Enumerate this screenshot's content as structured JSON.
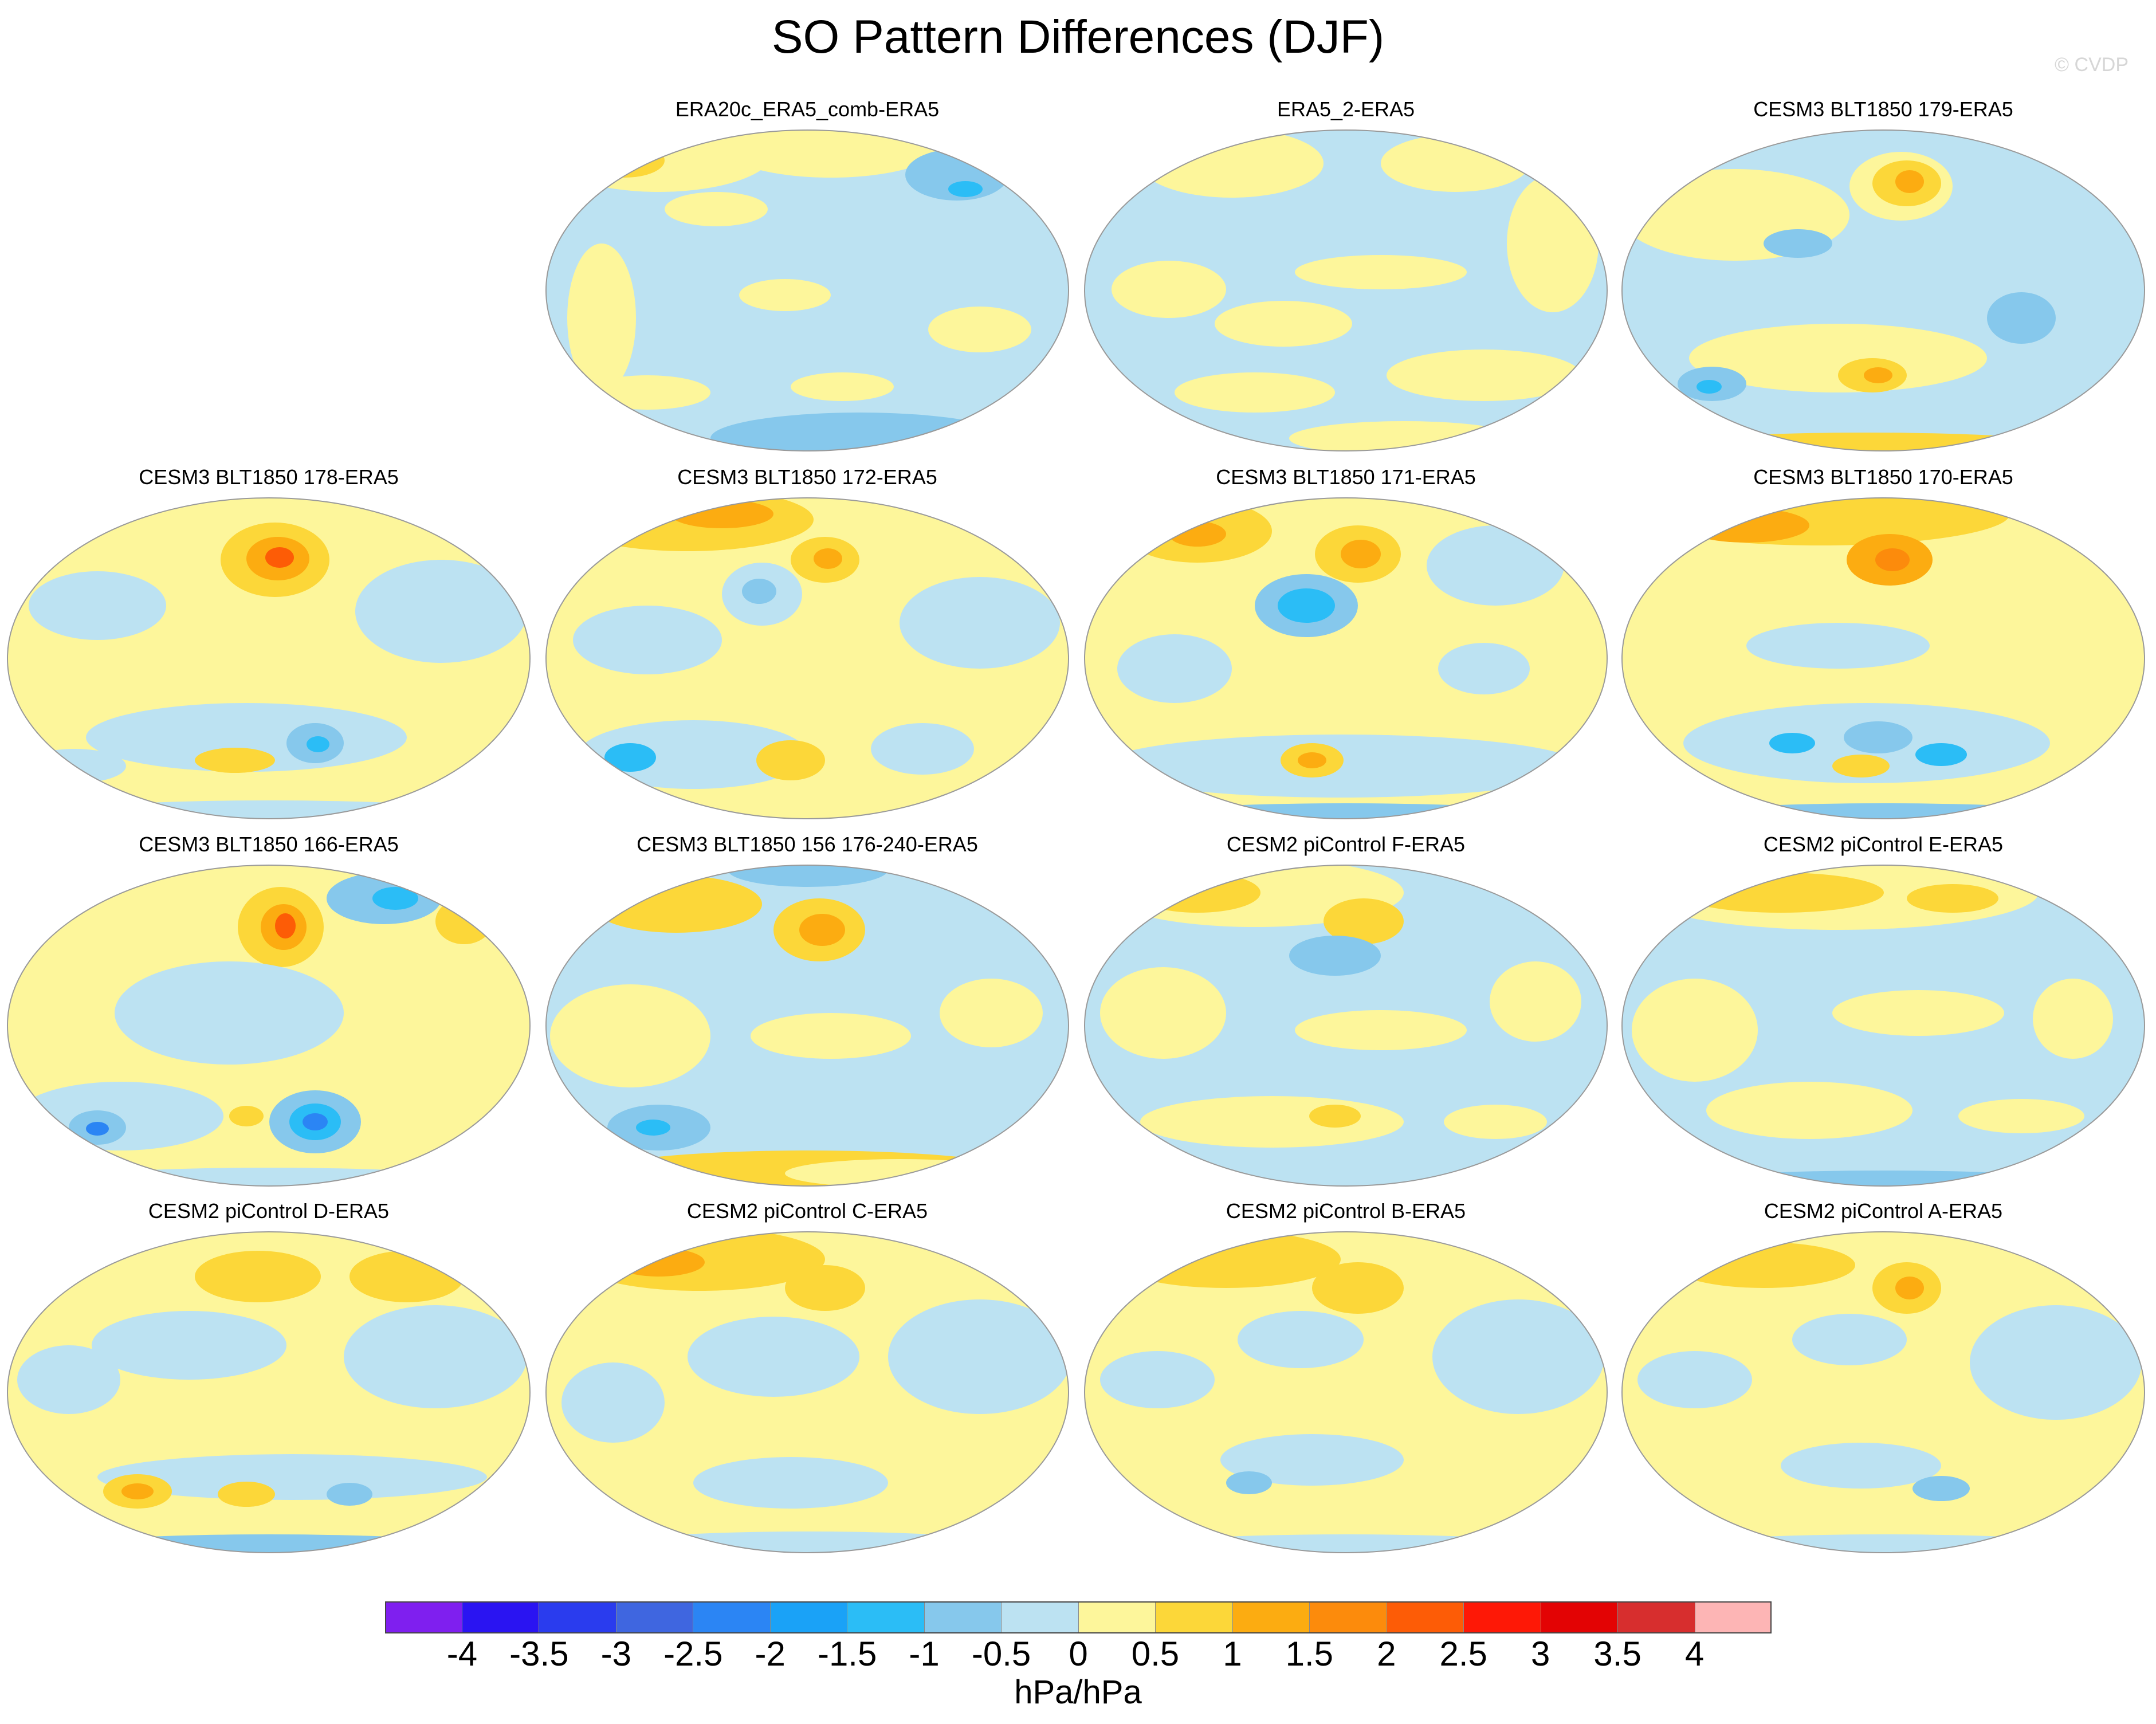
{
  "title": "SO Pattern Differences (DJF)",
  "credit": "© CVDP",
  "colorbar": {
    "units": "hPa/hPa",
    "colors": [
      "#7f1fef",
      "#2a14f2",
      "#2a3cee",
      "#3f66e0",
      "#2b85f4",
      "#1aa2f7",
      "#2bbdf6",
      "#86c8ec",
      "#bce2f2",
      "#fdf69b",
      "#fcd739",
      "#fcac11",
      "#fc8b0c",
      "#fd5c06",
      "#fe1806",
      "#e30304",
      "#d72e2e",
      "#fdb5b5"
    ],
    "labels": [
      "-4",
      "-3.5",
      "-3",
      "-2.5",
      "-2",
      "-1.5",
      "-1",
      "-0.5",
      "0",
      "0.5",
      "1",
      "1.5",
      "2",
      "2.5",
      "3",
      "3.5",
      "4"
    ]
  },
  "panels": [
    {
      "title": "ERA20c_ERA5_comb-ERA5"
    },
    {
      "title": "ERA5_2-ERA5"
    },
    {
      "title": "CESM3 BLT1850 179-ERA5"
    },
    {
      "title": "CESM3 BLT1850 178-ERA5"
    },
    {
      "title": "CESM3 BLT1850 172-ERA5"
    },
    {
      "title": "CESM3 BLT1850 171-ERA5"
    },
    {
      "title": "CESM3 BLT1850 170-ERA5"
    },
    {
      "title": "CESM3 BLT1850 166-ERA5"
    },
    {
      "title": "CESM3 BLT1850 156 176-240-ERA5"
    },
    {
      "title": "CESM2 piControl F-ERA5"
    },
    {
      "title": "CESM2 piControl E-ERA5"
    },
    {
      "title": "CESM2 piControl D-ERA5"
    },
    {
      "title": "CESM2 piControl C-ERA5"
    },
    {
      "title": "CESM2 piControl B-ERA5"
    },
    {
      "title": "CESM2 piControl A-ERA5"
    }
  ]
}
